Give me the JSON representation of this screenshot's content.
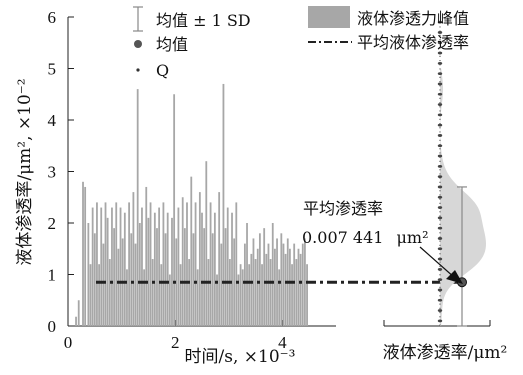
{
  "chart_data": {
    "type": "bar",
    "ylabel": "液体渗透率/μm², ×10⁻²",
    "xlabel": "时间/s, ×10⁻³",
    "right_xlabel": "液体渗透率/μm²",
    "x_ticks": [
      "0",
      "2",
      "4"
    ],
    "y_ticks": [
      "0",
      "1",
      "2",
      "3",
      "4",
      "5",
      "6"
    ],
    "xlim": [
      0,
      5.0
    ],
    "ylim": [
      0,
      6
    ],
    "legend": [
      {
        "label": "均值 ± 1 SD",
        "symbol": "errorbar"
      },
      {
        "label": "液体渗透力峰值",
        "symbol": "gray-box"
      },
      {
        "label": "均值",
        "symbol": "dot"
      },
      {
        "label": "平均液体渗透率",
        "symbol": "dashdot"
      },
      {
        "label": "Q",
        "symbol": "small-dot"
      }
    ],
    "annotation": {
      "title": "平均渗透率",
      "value": "0.007 441",
      "unit": "μm²"
    },
    "mean": 0.85,
    "sd": 1.85,
    "series": [
      {
        "x": [
          0.15,
          0.2,
          0.28,
          0.32,
          0.38,
          0.42,
          0.46,
          0.5,
          0.54,
          0.58,
          0.62,
          0.66,
          0.7,
          0.74,
          0.78,
          0.82,
          0.86,
          0.9,
          0.94,
          0.98,
          1.02,
          1.06,
          1.1,
          1.14,
          1.18,
          1.22,
          1.26,
          1.3,
          1.34,
          1.38,
          1.42,
          1.46,
          1.5,
          1.54,
          1.58,
          1.62,
          1.66,
          1.7,
          1.74,
          1.78,
          1.82,
          1.86,
          1.9,
          1.94,
          1.98,
          2.02,
          2.06,
          2.1,
          2.14,
          2.18,
          2.22,
          2.26,
          2.3,
          2.34,
          2.38,
          2.42,
          2.46,
          2.5,
          2.54,
          2.58,
          2.62,
          2.66,
          2.7,
          2.74,
          2.78,
          2.82,
          2.86,
          2.9,
          2.94,
          2.98,
          3.02,
          3.06,
          3.1,
          3.14,
          3.18,
          3.22,
          3.26,
          3.3,
          3.34,
          3.38,
          3.42,
          3.46,
          3.5,
          3.54,
          3.58,
          3.62,
          3.66,
          3.7,
          3.74,
          3.78,
          3.82,
          3.86,
          3.9,
          3.94,
          3.98,
          4.02,
          4.06,
          4.1,
          4.14,
          4.18,
          4.22,
          4.26,
          4.3,
          4.34,
          4.38,
          4.42,
          4.46
        ],
        "values": [
          0.18,
          0.5,
          2.8,
          2.7,
          2.0,
          1.2,
          2.3,
          1.8,
          2.4,
          1.2,
          2.3,
          1.6,
          2.4,
          2.1,
          1.3,
          2.3,
          1.9,
          2.4,
          1.5,
          2.3,
          1.7,
          2.2,
          1.1,
          2.4,
          1.8,
          2.6,
          1.6,
          4.6,
          2.0,
          2.3,
          1.1,
          2.7,
          2.1,
          2.4,
          1.3,
          2.2,
          1.9,
          2.3,
          1.2,
          2.4,
          1.8,
          2.2,
          1.0,
          2.1,
          4.5,
          1.7,
          2.3,
          1.2,
          2.5,
          1.9,
          2.4,
          1.3,
          2.9,
          1.8,
          2.4,
          1.1,
          2.6,
          2.2,
          1.9,
          3.2,
          1.3,
          2.4,
          1.8,
          2.2,
          1.0,
          2.6,
          1.6,
          4.7,
          1.9,
          2.3,
          1.3,
          2.2,
          1.7,
          2.4,
          1.0,
          1.2,
          1.1,
          1.6,
          2.0,
          1.2,
          1.4,
          1.7,
          1.3,
          1.5,
          1.8,
          1.2,
          1.9,
          1.4,
          1.6,
          1.3,
          2.0,
          1.5,
          1.7,
          1.1,
          1.8,
          1.6,
          1.4,
          1.7,
          1.5,
          1.2,
          1.6,
          1.3,
          1.5,
          1.4,
          1.6,
          1.7,
          1.2
        ]
      }
    ],
    "q_values": [
      0.1,
      0.3,
      0.5,
      0.7,
      0.9,
      1.1,
      1.3,
      1.5,
      1.7,
      1.9,
      2.1,
      2.3,
      2.5,
      2.7,
      2.9,
      3.1,
      3.3,
      3.5,
      3.7,
      3.9,
      4.1,
      4.3,
      4.5,
      4.7,
      4.9,
      5.1,
      5.3,
      5.5,
      5.7,
      5.9
    ]
  }
}
